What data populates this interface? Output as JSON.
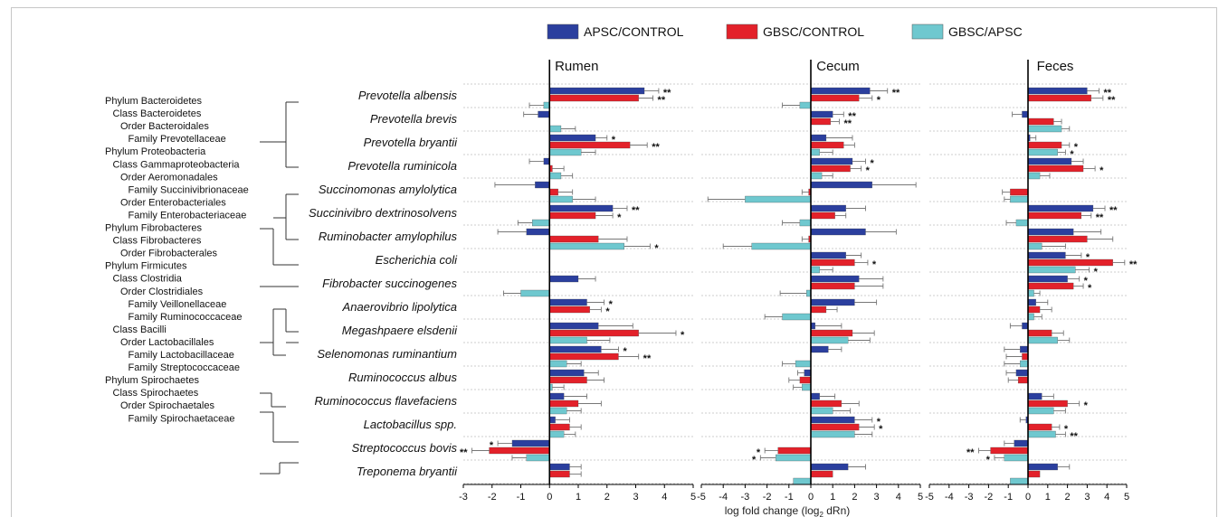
{
  "legend": [
    {
      "label": "APSC/CONTROL",
      "color": "#2b3f9e"
    },
    {
      "label": "GBSC/CONTROL",
      "color": "#e3212a"
    },
    {
      "label": "GBSC/APSC",
      "color": "#6fc8cf"
    }
  ],
  "xaxis_label": "log fold change  (log",
  "xaxis_sub": "2",
  "xaxis_tail": " dRn)",
  "taxonomy": [
    {
      "text": "Phylum Bacteroidetes",
      "indent": 0
    },
    {
      "text": "Class Bacteroidetes",
      "indent": 1
    },
    {
      "text": "Order Bacteroidales",
      "indent": 2
    },
    {
      "text": "Family Prevotellaceae",
      "indent": 3
    },
    {
      "text": "Phylum Proteobacteria",
      "indent": 0
    },
    {
      "text": "Class Gammaproteobacteria",
      "indent": 1
    },
    {
      "text": "Order Aeromonadales",
      "indent": 2
    },
    {
      "text": "Family Succinivibrionaceae",
      "indent": 3
    },
    {
      "text": "Order Enterobacteriales",
      "indent": 2
    },
    {
      "text": "Family Enterobacteriaceae",
      "indent": 3
    },
    {
      "text": "Phylum Fibrobacteres",
      "indent": 0
    },
    {
      "text": "Class Fibrobacteres",
      "indent": 1
    },
    {
      "text": "Order Fibrobacterales",
      "indent": 2
    },
    {
      "text": "Phylum Firmicutes",
      "indent": 0
    },
    {
      "text": "Class Clostridia",
      "indent": 1
    },
    {
      "text": "Order Clostridiales",
      "indent": 2
    },
    {
      "text": "Family Veillonellaceae",
      "indent": 3
    },
    {
      "text": "Family Ruminococcaceae",
      "indent": 3
    },
    {
      "text": "Class Bacilli",
      "indent": 1
    },
    {
      "text": "Order  Lactobacillales",
      "indent": 2
    },
    {
      "text": "Family Lactobacillaceae",
      "indent": 3
    },
    {
      "text": "Family Streptococcaceae",
      "indent": 3
    },
    {
      "text": "Phylum Spirochaetes",
      "indent": 0
    },
    {
      "text": "Class Spirochaetes",
      "indent": 1
    },
    {
      "text": "Order Spirochaetales",
      "indent": 2
    },
    {
      "text": "Family Spirochaetaceae",
      "indent": 3
    }
  ],
  "chart_data": [
    {
      "type": "bar",
      "title": "Rumen",
      "xlim": [
        -3,
        5
      ],
      "ticks": [
        "-3",
        "-2",
        "-1",
        "0",
        "1",
        "2",
        "3",
        "4",
        "5"
      ],
      "categories": [
        "Prevotella albensis",
        "Prevotella brevis",
        "Prevotella bryantii",
        "Prevotella ruminicola",
        "Succinomonas amylolytica",
        "Succinivibro dextrinosolvens",
        "Ruminobacter amylophilus",
        "Escherichia coli",
        "Fibrobacter succinogenes",
        "Anaerovibrio lipolytica",
        "Megashpaere elsdenii",
        "Selenomonas ruminantium",
        "Ruminococcus albus",
        "Ruminococcus  flavefaciens",
        "Lactobacillus spp.",
        "Streptococcus bovis",
        "Treponema bryantii"
      ],
      "series": [
        {
          "name": "APSC/CONTROL",
          "values": [
            3.3,
            -0.4,
            1.6,
            -0.2,
            -0.5,
            2.2,
            -0.8,
            0,
            1.0,
            1.3,
            1.7,
            1.8,
            1.2,
            0.5,
            0.2,
            -1.3,
            0.7
          ],
          "err": [
            0.5,
            0.5,
            0.4,
            0.5,
            1.4,
            0.5,
            1.0,
            0,
            0.6,
            0.6,
            1.2,
            0.6,
            0.5,
            0.8,
            0.5,
            0.5,
            0.4
          ],
          "sig": [
            "**",
            "",
            "*",
            "",
            "",
            "**",
            "",
            "",
            "",
            "*",
            "",
            "*",
            "",
            "",
            "",
            "*",
            ""
          ]
        },
        {
          "name": "GBSC/CONTROL",
          "values": [
            3.1,
            0,
            2.8,
            0.1,
            0.3,
            1.6,
            1.7,
            0,
            0,
            1.4,
            3.1,
            2.4,
            1.3,
            1.0,
            0.7,
            -2.1,
            0.7
          ],
          "err": [
            0.5,
            0,
            0.6,
            0.4,
            0.5,
            0.6,
            1.0,
            0,
            0,
            0.4,
            1.3,
            0.7,
            0.6,
            0.8,
            0.4,
            0.6,
            0.4
          ],
          "sig": [
            "**",
            "",
            "**",
            "",
            "",
            "*",
            "",
            "",
            "",
            "*",
            "*",
            "**",
            "",
            "",
            "",
            "**",
            ""
          ]
        },
        {
          "name": "GBSC/APSC",
          "values": [
            -0.2,
            0.4,
            1.1,
            0.4,
            0.8,
            -0.6,
            2.6,
            0,
            -1.0,
            0,
            1.3,
            0.6,
            0.1,
            0.6,
            0.5,
            -0.8,
            0
          ],
          "err": [
            0.5,
            0.5,
            0.5,
            0.4,
            0.8,
            0.5,
            0.9,
            0,
            0.6,
            0,
            0.8,
            0.5,
            0.4,
            0.5,
            0.4,
            0.5,
            0
          ],
          "sig": [
            "",
            "",
            "",
            "",
            "",
            "",
            "*",
            "",
            "",
            "",
            "",
            "",
            "",
            "",
            "",
            "",
            ""
          ]
        }
      ]
    },
    {
      "type": "bar",
      "title": "Cecum",
      "xlim": [
        -5,
        5
      ],
      "ticks": [
        "-5",
        "-4",
        "-3",
        "-2",
        "-1",
        "0",
        "1",
        "2",
        "3",
        "4",
        "5"
      ],
      "categories": [
        "Prevotella albensis",
        "Prevotella brevis",
        "Prevotella bryantii",
        "Prevotella ruminicola",
        "Succinomonas amylolytica",
        "Succinivibro dextrinosolvens",
        "Ruminobacter amylophilus",
        "Escherichia coli",
        "Fibrobacter succinogenes",
        "Anaerovibrio lipolytica",
        "Megashpaere elsdenii",
        "Selenomonas ruminantium",
        "Ruminococcus albus",
        "Ruminococcus  flavefaciens",
        "Lactobacillus spp.",
        "Streptococcus bovis",
        "Treponema bryantii"
      ],
      "series": [
        {
          "name": "APSC/CONTROL",
          "values": [
            2.7,
            1.0,
            0.7,
            1.9,
            2.8,
            1.6,
            2.5,
            1.6,
            2.2,
            2.0,
            0.2,
            0.8,
            -0.3,
            0.4,
            2.0,
            0,
            1.7
          ],
          "err": [
            0.8,
            0.5,
            1.2,
            0.6,
            2.0,
            0.9,
            1.4,
            0.7,
            1.1,
            1.0,
            1.2,
            0.6,
            0.3,
            0.7,
            0.8,
            0,
            0.8
          ],
          "sig": [
            "**",
            "**",
            "",
            "*",
            "",
            "",
            "",
            "",
            "",
            "",
            "",
            "",
            "",
            "",
            "*",
            "",
            ""
          ]
        },
        {
          "name": "GBSC/CONTROL",
          "values": [
            2.2,
            0.9,
            1.5,
            1.8,
            -0.1,
            1.1,
            -0.1,
            2.0,
            2.0,
            0.7,
            1.9,
            0,
            -0.5,
            1.4,
            2.2,
            -1.5,
            1.0
          ],
          "err": [
            0.6,
            0.4,
            0.5,
            0.5,
            0.3,
            0.5,
            0.3,
            0.6,
            1.3,
            0.5,
            1.0,
            0,
            0.5,
            0.8,
            0.7,
            0.6,
            0
          ],
          "sig": [
            "*",
            "**",
            "",
            "*",
            "",
            "",
            "",
            "*",
            "",
            "",
            "",
            "",
            "",
            "",
            "*",
            "*",
            ""
          ]
        },
        {
          "name": "GBSC/APSC",
          "values": [
            -0.5,
            0,
            0.4,
            0.5,
            -3.0,
            -0.5,
            -2.7,
            0.4,
            -0.2,
            -1.3,
            1.7,
            -0.7,
            -0.4,
            1.0,
            2.0,
            -1.6,
            -0.8
          ],
          "err": [
            0.8,
            0,
            0.6,
            0.5,
            1.7,
            0.8,
            1.3,
            0.6,
            1.2,
            0.8,
            1.0,
            0.6,
            0.4,
            0.8,
            0.8,
            0.7,
            0
          ],
          "sig": [
            "",
            "",
            "",
            "",
            "",
            "",
            "",
            "",
            "",
            "",
            "",
            "",
            "",
            "",
            "",
            "*",
            ""
          ]
        }
      ]
    },
    {
      "type": "bar",
      "title": "Feces",
      "xlim": [
        -5,
        5
      ],
      "ticks": [
        "-5",
        "-4",
        "-3",
        "-2",
        "-1",
        "0",
        "1",
        "2",
        "3",
        "4",
        "5"
      ],
      "categories": [
        "Prevotella albensis",
        "Prevotella brevis",
        "Prevotella bryantii",
        "Prevotella ruminicola",
        "Succinomonas amylolytica",
        "Succinivibro dextrinosolvens",
        "Ruminobacter amylophilus",
        "Escherichia coli",
        "Fibrobacter succinogenes",
        "Anaerovibrio lipolytica",
        "Megashpaere elsdenii",
        "Selenomonas ruminantium",
        "Ruminococcus albus",
        "Ruminococcus  flavefaciens",
        "Lactobacillus spp.",
        "Streptococcus bovis",
        "Treponema bryantii"
      ],
      "series": [
        {
          "name": "APSC/CONTROL",
          "values": [
            3.0,
            -0.3,
            0.1,
            2.2,
            0,
            3.3,
            2.3,
            1.9,
            2.0,
            0.4,
            -0.3,
            -0.4,
            -0.6,
            0.7,
            -0.1,
            -0.7,
            1.5
          ],
          "err": [
            0.6,
            0.5,
            0.3,
            0.6,
            0,
            0.6,
            1.4,
            0.8,
            0.6,
            0.6,
            0.6,
            0.8,
            0.5,
            0.6,
            0.3,
            0.5,
            0.6
          ],
          "sig": [
            "**",
            "",
            "",
            "",
            "",
            "**",
            "",
            "*",
            "*",
            "",
            "",
            "",
            "",
            "",
            "",
            "",
            ""
          ]
        },
        {
          "name": "GBSC/CONTROL",
          "values": [
            3.2,
            1.3,
            1.7,
            2.8,
            -0.9,
            2.7,
            3.0,
            4.3,
            2.3,
            0.6,
            1.2,
            -0.3,
            -0.5,
            2.0,
            1.2,
            -1.9,
            0.6
          ],
          "err": [
            0.6,
            0.4,
            0.4,
            0.6,
            0.4,
            0.5,
            1.3,
            0.6,
            0.5,
            0.6,
            0.6,
            0.8,
            0.5,
            0.6,
            0.4,
            0.6,
            0
          ],
          "sig": [
            "**",
            "",
            "*",
            "*",
            "",
            "**",
            "",
            "**",
            "*",
            "",
            "",
            "",
            "",
            "*",
            "*",
            "**",
            ""
          ]
        },
        {
          "name": "GBSC/APSC",
          "values": [
            0,
            1.7,
            1.5,
            0.6,
            -0.9,
            -0.6,
            0.7,
            2.4,
            0.3,
            0.3,
            1.5,
            -0.4,
            0,
            1.3,
            1.4,
            -1.2,
            -0.9
          ],
          "err": [
            0,
            0.4,
            0.4,
            0.5,
            0.3,
            0.5,
            1.2,
            0.7,
            0.3,
            0.4,
            0.6,
            0.8,
            0,
            0.6,
            0.5,
            0.5,
            0
          ],
          "sig": [
            "",
            "",
            "*",
            "",
            "",
            "",
            "",
            "*",
            "",
            "",
            "",
            "",
            "",
            "",
            "**",
            "*",
            ""
          ]
        }
      ]
    }
  ]
}
